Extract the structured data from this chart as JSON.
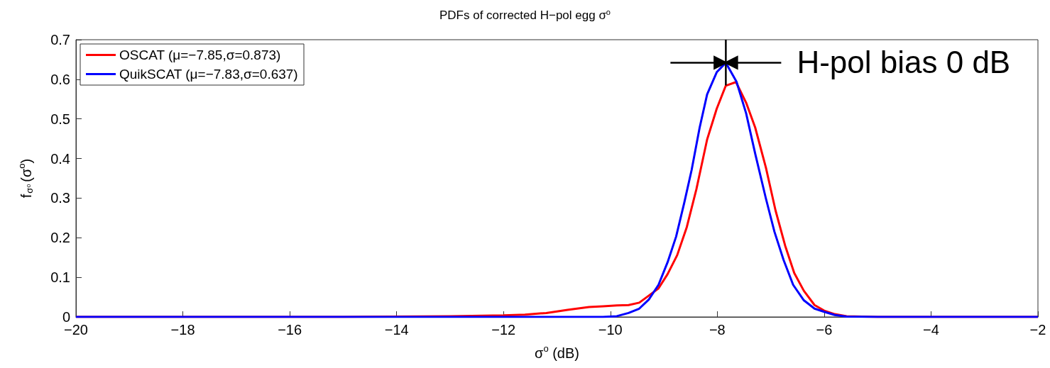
{
  "chart_data": {
    "type": "line",
    "title": "PDFs of corrected H−pol egg σ$^{o}$",
    "xlabel": "σ$^{o}$ (dB)",
    "ylabel": "f$_{σᵒ}$(σ$^{o}$)",
    "xlim": [
      -20,
      -2
    ],
    "xticks": [
      -20,
      -18,
      -16,
      -14,
      -12,
      -10,
      -8,
      -6,
      -4,
      -2
    ],
    "ylim": [
      0,
      0.7
    ],
    "yticks": [
      0,
      0.1,
      0.2,
      0.3,
      0.4,
      0.5,
      0.6,
      0.7
    ],
    "grid": false,
    "legend": "top left",
    "marker": "none",
    "line_style": "solid",
    "annotations": [
      {
        "text": "H-pol bias 0 dB",
        "x": -7.84,
        "y": 0.642
      }
    ],
    "series": [
      {
        "name": "OSCAT (μ=−7.85,σ=0.873)",
        "color": "#ff0000",
        "x": [
          -20,
          -15,
          -13,
          -12,
          -11.6,
          -11.2,
          -10.8,
          -10.4,
          -10.14,
          -9.88,
          -9.66,
          -9.46,
          -9.28,
          -9.1,
          -8.93,
          -8.75,
          -8.57,
          -8.39,
          -8.19,
          -8.01,
          -7.84,
          -7.65,
          -7.46,
          -7.29,
          -7.09,
          -6.91,
          -6.73,
          -6.56,
          -6.38,
          -6.18,
          -6.0,
          -5.8,
          -5.58,
          -5.0,
          -2
        ],
        "values": [
          0,
          0,
          0.002,
          0.004,
          0.006,
          0.01,
          0.018,
          0.025,
          0.027,
          0.029,
          0.03,
          0.036,
          0.054,
          0.072,
          0.108,
          0.156,
          0.227,
          0.323,
          0.448,
          0.526,
          0.584,
          0.593,
          0.541,
          0.478,
          0.377,
          0.269,
          0.18,
          0.111,
          0.066,
          0.03,
          0.016,
          0.007,
          0.002,
          0,
          0
        ]
      },
      {
        "name": "QuikSCAT (μ=−7.83,σ=0.637)",
        "color": "#0000ff",
        "x": [
          -20,
          -10.14,
          -9.88,
          -9.66,
          -9.46,
          -9.28,
          -9.1,
          -8.93,
          -8.77,
          -8.62,
          -8.48,
          -8.33,
          -8.19,
          -8.01,
          -7.84,
          -7.64,
          -7.46,
          -7.29,
          -7.09,
          -6.93,
          -6.76,
          -6.58,
          -6.38,
          -6.18,
          -6.0,
          -5.8,
          -5.58,
          -5.0,
          -2
        ],
        "values": [
          0,
          0,
          0.002,
          0.01,
          0.021,
          0.044,
          0.081,
          0.138,
          0.203,
          0.287,
          0.371,
          0.478,
          0.562,
          0.618,
          0.642,
          0.594,
          0.514,
          0.412,
          0.299,
          0.215,
          0.144,
          0.081,
          0.042,
          0.021,
          0.013,
          0.005,
          0.001,
          0,
          0
        ]
      }
    ]
  }
}
